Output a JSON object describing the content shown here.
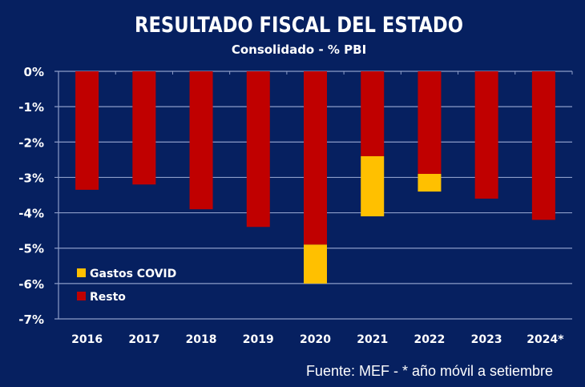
{
  "chart_data": {
    "type": "bar",
    "stacked": true,
    "title": "RESULTADO FISCAL  DEL ESTADO",
    "subtitle": "Consolidado - % PBI",
    "xlabel": "",
    "ylabel": "",
    "ylim": [
      -7,
      0
    ],
    "yticks": [
      0,
      -1,
      -2,
      -3,
      -4,
      -5,
      -6,
      -7
    ],
    "ytick_labels": [
      "0%",
      "-1%",
      "-2%",
      "-3%",
      "-4%",
      "-5%",
      "-6%",
      "-7%"
    ],
    "grid": true,
    "categories": [
      "2016",
      "2017",
      "2018",
      "2019",
      "2020",
      "2021",
      "2022",
      "2023",
      "2024*"
    ],
    "series": [
      {
        "name": "Resto",
        "color": "#c00000",
        "values": [
          -3.35,
          -3.2,
          -3.9,
          -4.4,
          -4.9,
          -2.4,
          -2.9,
          -3.6,
          -4.2
        ]
      },
      {
        "name": "Gastos COVID",
        "color": "#ffc000",
        "values": [
          0,
          0,
          0,
          0,
          -1.1,
          -1.7,
          -0.5,
          0,
          0
        ]
      }
    ],
    "legend": {
      "placement": "bottom-left",
      "entries": [
        {
          "name": "Gastos COVID",
          "color": "#ffc000"
        },
        {
          "name": "Resto",
          "color": "#c00000"
        }
      ]
    },
    "source_note": "Fuente: MEF - * año móvil a setiembre"
  },
  "colors": {
    "background": "#062060",
    "gridline": "#8c9cc8",
    "text": "#ffffff"
  }
}
